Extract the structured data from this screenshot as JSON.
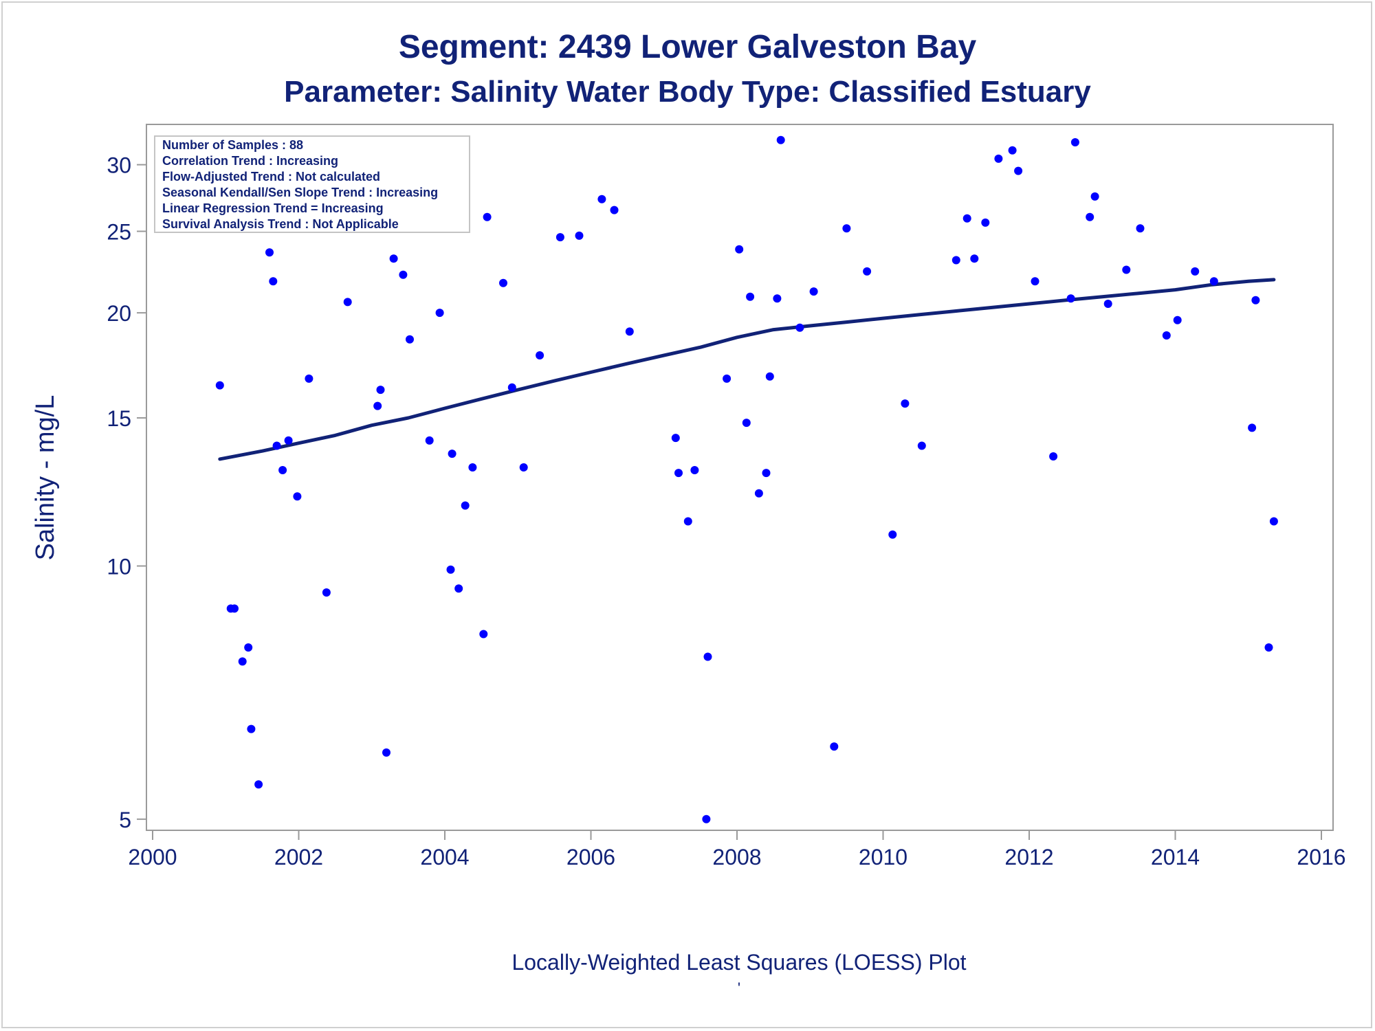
{
  "chart_data": {
    "type": "scatter",
    "title": "Segment: 2439  Lower Galveston Bay",
    "subtitle": "Parameter: Salinity   Water Body Type: Classified Estuary",
    "xlabel": "",
    "ylabel": "Salinity - mg/L",
    "footnote": "Locally-Weighted Least Squares (LOESS) Plot",
    "footnote_mark": "'",
    "x_scale": "linear",
    "y_scale": "log",
    "xlim": [
      2000,
      2016
    ],
    "ylim": [
      4.85,
      33.5
    ],
    "x_ticks": [
      2000,
      2002,
      2004,
      2006,
      2008,
      2010,
      2012,
      2014,
      2016
    ],
    "y_ticks": [
      5,
      10,
      15,
      20,
      25,
      30
    ],
    "grid": false,
    "marker_color": "#0000ff",
    "line_color": "#112277",
    "text_color": "#112277",
    "stats_box": {
      "placement": "top-left",
      "lines": [
        "Number of Samples : 88",
        "Correlation Trend : Increasing",
        "Flow-Adjusted Trend : Not calculated",
        "Seasonal Kendall/Sen Slope Trend : Increasing",
        "Linear Regression Trend = Increasing",
        "Survival Analysis Trend : Not Applicable"
      ]
    },
    "series": [
      {
        "type": "scatter",
        "points": [
          [
            2000.92,
            16.4
          ],
          [
            2001.07,
            8.9
          ],
          [
            2001.12,
            8.9
          ],
          [
            2001.23,
            7.7
          ],
          [
            2001.31,
            8.0
          ],
          [
            2001.35,
            6.4
          ],
          [
            2001.45,
            5.5
          ],
          [
            2001.6,
            23.6
          ],
          [
            2001.65,
            21.8
          ],
          [
            2001.7,
            13.9
          ],
          [
            2001.78,
            13.0
          ],
          [
            2001.86,
            14.1
          ],
          [
            2001.98,
            12.1
          ],
          [
            2002.14,
            16.7
          ],
          [
            2002.38,
            9.3
          ],
          [
            2002.67,
            20.6
          ],
          [
            2003.08,
            15.5
          ],
          [
            2003.12,
            16.2
          ],
          [
            2003.2,
            6.0
          ],
          [
            2003.3,
            23.2
          ],
          [
            2003.41,
            26.5
          ],
          [
            2003.43,
            22.2
          ],
          [
            2003.52,
            18.6
          ],
          [
            2003.79,
            14.1
          ],
          [
            2003.93,
            20.0
          ],
          [
            2004.08,
            9.9
          ],
          [
            2004.1,
            13.6
          ],
          [
            2004.19,
            9.4
          ],
          [
            2004.28,
            11.8
          ],
          [
            2004.38,
            13.1
          ],
          [
            2004.53,
            8.3
          ],
          [
            2004.58,
            26.0
          ],
          [
            2004.8,
            21.7
          ],
          [
            2004.92,
            16.3
          ],
          [
            2005.08,
            13.1
          ],
          [
            2005.3,
            17.8
          ],
          [
            2005.58,
            24.6
          ],
          [
            2005.84,
            24.7
          ],
          [
            2006.15,
            27.3
          ],
          [
            2006.32,
            26.5
          ],
          [
            2006.53,
            19.0
          ],
          [
            2007.16,
            14.2
          ],
          [
            2007.2,
            12.9
          ],
          [
            2007.33,
            11.3
          ],
          [
            2007.42,
            13.0
          ],
          [
            2007.58,
            5.0
          ],
          [
            2007.6,
            7.8
          ],
          [
            2007.86,
            16.7
          ],
          [
            2008.03,
            23.8
          ],
          [
            2008.13,
            14.8
          ],
          [
            2008.18,
            20.9
          ],
          [
            2008.3,
            12.2
          ],
          [
            2008.4,
            12.9
          ],
          [
            2008.45,
            16.8
          ],
          [
            2008.55,
            20.8
          ],
          [
            2008.6,
            32.1
          ],
          [
            2008.86,
            19.2
          ],
          [
            2009.05,
            21.2
          ],
          [
            2009.33,
            6.1
          ],
          [
            2009.5,
            25.2
          ],
          [
            2009.78,
            22.4
          ],
          [
            2010.13,
            10.9
          ],
          [
            2010.3,
            15.6
          ],
          [
            2010.53,
            13.9
          ],
          [
            2011.0,
            23.1
          ],
          [
            2011.15,
            25.9
          ],
          [
            2011.25,
            23.2
          ],
          [
            2011.4,
            25.6
          ],
          [
            2011.58,
            30.5
          ],
          [
            2011.77,
            31.2
          ],
          [
            2011.85,
            29.5
          ],
          [
            2012.08,
            21.8
          ],
          [
            2012.33,
            13.5
          ],
          [
            2012.57,
            20.8
          ],
          [
            2012.63,
            31.9
          ],
          [
            2012.83,
            26.0
          ],
          [
            2012.9,
            27.5
          ],
          [
            2013.08,
            20.5
          ],
          [
            2013.33,
            22.5
          ],
          [
            2013.52,
            25.2
          ],
          [
            2013.88,
            18.8
          ],
          [
            2014.03,
            19.6
          ],
          [
            2014.27,
            22.4
          ],
          [
            2014.53,
            21.8
          ],
          [
            2015.05,
            14.6
          ],
          [
            2015.1,
            20.7
          ],
          [
            2015.28,
            8.0
          ],
          [
            2015.35,
            11.3
          ]
        ]
      },
      {
        "type": "line",
        "points": [
          [
            2000.92,
            13.4
          ],
          [
            2001.5,
            13.7
          ],
          [
            2002.0,
            14.0
          ],
          [
            2002.5,
            14.3
          ],
          [
            2003.0,
            14.7
          ],
          [
            2003.5,
            15.0
          ],
          [
            2004.0,
            15.4
          ],
          [
            2004.5,
            15.8
          ],
          [
            2005.0,
            16.2
          ],
          [
            2005.5,
            16.6
          ],
          [
            2006.0,
            17.0
          ],
          [
            2006.5,
            17.4
          ],
          [
            2007.0,
            17.8
          ],
          [
            2007.5,
            18.2
          ],
          [
            2008.0,
            18.7
          ],
          [
            2008.5,
            19.1
          ],
          [
            2009.0,
            19.3
          ],
          [
            2009.5,
            19.5
          ],
          [
            2010.0,
            19.7
          ],
          [
            2010.5,
            19.9
          ],
          [
            2011.0,
            20.1
          ],
          [
            2011.5,
            20.3
          ],
          [
            2012.0,
            20.5
          ],
          [
            2012.5,
            20.7
          ],
          [
            2013.0,
            20.9
          ],
          [
            2013.5,
            21.1
          ],
          [
            2014.0,
            21.3
          ],
          [
            2014.5,
            21.6
          ],
          [
            2015.0,
            21.8
          ],
          [
            2015.35,
            21.9
          ]
        ]
      }
    ]
  }
}
